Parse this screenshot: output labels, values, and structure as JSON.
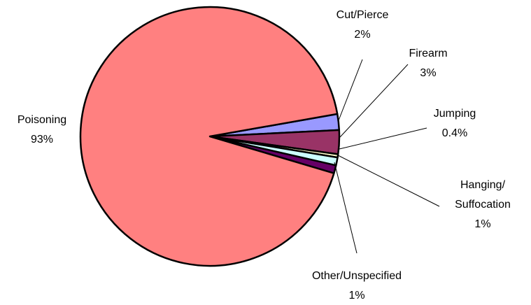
{
  "chart_data": {
    "type": "pie",
    "categories": [
      "Poisoning",
      "Cut/Pierce",
      "Firearm",
      "Jumping",
      "Hanging/\nSuffocation",
      "Other/Unspecified"
    ],
    "values": [
      93,
      2,
      3,
      0.4,
      1,
      1
    ],
    "value_labels": [
      "93%",
      "2%",
      "3%",
      "0.4%",
      "1%",
      "1%"
    ],
    "colors": [
      "#FF8080",
      "#9999FF",
      "#993366",
      "#FFFFCC",
      "#CCFFFF",
      "#660066"
    ]
  }
}
